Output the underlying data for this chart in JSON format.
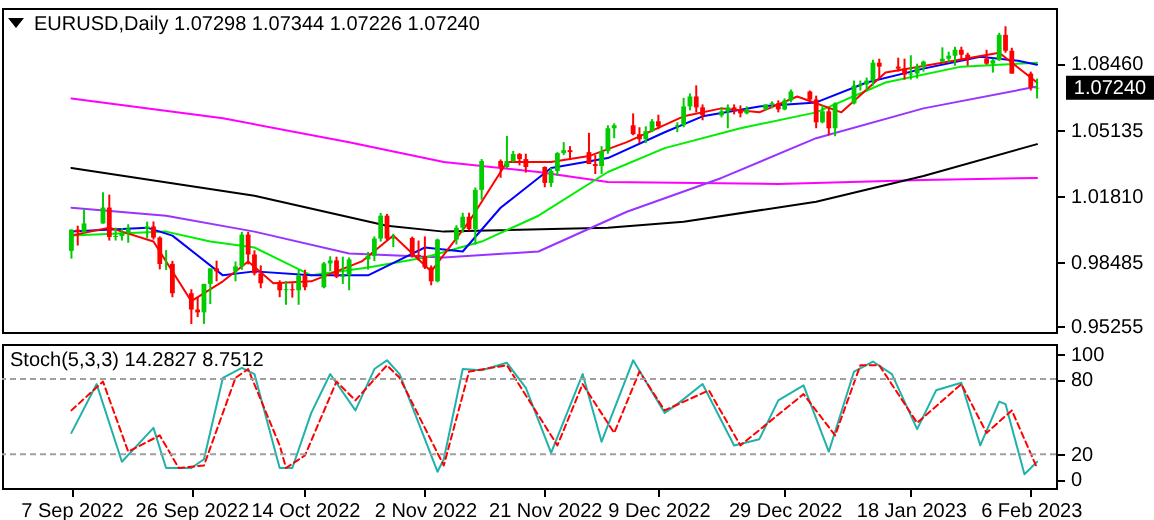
{
  "chart_data": [
    {
      "type": "candlestick",
      "title": "EURUSD,Daily 1.07298 1.07344 1.07226 1.07240",
      "x": [
        "2022-09-07",
        "2022-09-08",
        "2022-09-09",
        "2022-09-12",
        "2022-09-13",
        "2022-09-14",
        "2022-09-15",
        "2022-09-16",
        "2022-09-19",
        "2022-09-20",
        "2022-09-21",
        "2022-09-22",
        "2022-09-23",
        "2022-09-26",
        "2022-09-27",
        "2022-09-28",
        "2022-09-29",
        "2022-09-30",
        "2022-10-03",
        "2022-10-04",
        "2022-10-05",
        "2022-10-06",
        "2022-10-07",
        "2022-10-10",
        "2022-10-11",
        "2022-10-12",
        "2022-10-13",
        "2022-10-14",
        "2022-10-17",
        "2022-10-18",
        "2022-10-19",
        "2022-10-20",
        "2022-10-21",
        "2022-10-24",
        "2022-10-25",
        "2022-10-26",
        "2022-10-27",
        "2022-10-28",
        "2022-10-31",
        "2022-11-01",
        "2022-11-02",
        "2022-11-03",
        "2022-11-04",
        "2022-11-07",
        "2022-11-08",
        "2022-11-09",
        "2022-11-10",
        "2022-11-11",
        "2022-11-14",
        "2022-11-15",
        "2022-11-16",
        "2022-11-17",
        "2022-11-18",
        "2022-11-21",
        "2022-11-22",
        "2022-11-23",
        "2022-11-24",
        "2022-11-25",
        "2022-11-28",
        "2022-11-29",
        "2022-11-30",
        "2022-12-01",
        "2022-12-02",
        "2022-12-05",
        "2022-12-06",
        "2022-12-07",
        "2022-12-08",
        "2022-12-09",
        "2022-12-12",
        "2022-12-13",
        "2022-12-14",
        "2022-12-15",
        "2022-12-16",
        "2022-12-19",
        "2022-12-20",
        "2022-12-21",
        "2022-12-22",
        "2022-12-23",
        "2022-12-26",
        "2022-12-27",
        "2022-12-28",
        "2022-12-29",
        "2022-12-30",
        "2023-01-02",
        "2023-01-03",
        "2023-01-04",
        "2023-01-05",
        "2023-01-06",
        "2023-01-09",
        "2023-01-10",
        "2023-01-11",
        "2023-01-12",
        "2023-01-13",
        "2023-01-16",
        "2023-01-17",
        "2023-01-18",
        "2023-01-19",
        "2023-01-20",
        "2023-01-23",
        "2023-01-24",
        "2023-01-25",
        "2023-01-26",
        "2023-01-27",
        "2023-01-30",
        "2023-01-31",
        "2023-02-01",
        "2023-02-02",
        "2023-02-03",
        "2023-02-06",
        "2023-02-07"
      ],
      "ohlc": [
        [
          0.9903,
          1.0012,
          0.9864,
          1.001
        ],
        [
          1.001,
          1.003,
          0.993,
          0.9998
        ],
        [
          0.9998,
          1.0112,
          0.999,
          1.0041
        ],
        [
          1.0041,
          1.0198,
          1.004,
          1.0121
        ],
        [
          1.0121,
          1.0186,
          0.9955,
          0.9973
        ],
        [
          0.9973,
          1.002,
          0.9955,
          0.9978
        ],
        [
          0.9978,
          1.0018,
          0.9955,
          0.9995
        ],
        [
          0.9995,
          1.0037,
          0.9944,
          1.0015
        ],
        [
          1.0015,
          1.005,
          0.9966,
          1.0026
        ],
        [
          1.0026,
          1.0051,
          0.996,
          0.997
        ],
        [
          0.997,
          0.9976,
          0.981,
          0.9837
        ],
        [
          0.9837,
          0.9907,
          0.9807,
          0.9838
        ],
        [
          0.9838,
          0.9853,
          0.967,
          0.969
        ],
        [
          0.969,
          0.971,
          0.9535,
          0.9608
        ],
        [
          0.9608,
          0.9671,
          0.957,
          0.9594
        ],
        [
          0.9594,
          0.9737,
          0.9536,
          0.9737
        ],
        [
          0.9737,
          0.9815,
          0.9636,
          0.9815
        ],
        [
          0.9815,
          0.9854,
          0.975,
          0.98
        ],
        [
          0.98,
          0.985,
          0.975,
          0.9825
        ],
        [
          0.9825,
          0.9999,
          0.9808,
          0.9985
        ],
        [
          0.9985,
          0.9999,
          0.9835,
          0.9885
        ],
        [
          0.9885,
          0.9906,
          0.978,
          0.979
        ],
        [
          0.979,
          0.983,
          0.9715,
          0.974
        ],
        [
          0.974,
          0.9755,
          0.967,
          0.9705
        ],
        [
          0.9705,
          0.9752,
          0.9632,
          0.971
        ],
        [
          0.971,
          0.974,
          0.9668,
          0.9705
        ],
        [
          0.9705,
          0.9807,
          0.9632,
          0.978
        ],
        [
          0.978,
          0.9808,
          0.9705,
          0.972
        ],
        [
          0.972,
          0.9847,
          0.9715,
          0.984
        ],
        [
          0.984,
          0.9876,
          0.9802,
          0.9855
        ],
        [
          0.9855,
          0.9874,
          0.9766,
          0.9773
        ],
        [
          0.9773,
          0.9874,
          0.9737,
          0.978
        ],
        [
          0.978,
          0.987,
          0.9705,
          0.986
        ],
        [
          0.986,
          0.9898,
          0.9809,
          0.9878
        ],
        [
          0.9878,
          0.9976,
          0.9852,
          0.9965
        ],
        [
          0.9965,
          1.0094,
          0.995,
          1.008
        ],
        [
          1.008,
          1.0089,
          0.9953,
          0.9965
        ],
        [
          0.9965,
          0.9989,
          0.9922,
          0.9968
        ],
        [
          0.9968,
          0.9975,
          0.987,
          0.9882
        ],
        [
          0.9882,
          0.9955,
          0.9855,
          0.9877
        ],
        [
          0.9877,
          0.9976,
          0.9812,
          0.982
        ],
        [
          0.982,
          0.983,
          0.973,
          0.975
        ],
        [
          0.975,
          0.9965,
          0.9745,
          0.996
        ],
        [
          0.996,
          1.0032,
          0.9935,
          1.002
        ],
        [
          1.002,
          1.0095,
          0.9995,
          1.0075
        ],
        [
          1.0075,
          1.0095,
          1.0005,
          1.0013
        ],
        [
          1.0013,
          1.0222,
          0.9935,
          1.021
        ],
        [
          1.021,
          1.0365,
          1.016,
          1.0355
        ],
        [
          1.0355,
          1.0363,
          1.0271,
          1.0325
        ],
        [
          1.0325,
          1.0481,
          1.032,
          1.0355
        ],
        [
          1.0355,
          1.0406,
          1.035,
          1.039
        ],
        [
          1.039,
          1.0395,
          1.0333,
          1.0365
        ],
        [
          1.0365,
          1.0392,
          1.0297,
          1.0325
        ],
        [
          1.0325,
          1.0328,
          1.0223,
          1.0245
        ],
        [
          1.0245,
          1.032,
          1.0225,
          1.0305
        ],
        [
          1.0305,
          1.04,
          1.028,
          1.0395
        ],
        [
          1.0395,
          1.045,
          1.0385,
          1.041
        ],
        [
          1.041,
          1.043,
          1.036,
          1.04
        ],
        [
          1.04,
          1.0497,
          1.034,
          1.034
        ],
        [
          1.034,
          1.0385,
          1.029,
          1.033
        ],
        [
          1.033,
          1.043,
          1.029,
          1.0405
        ],
        [
          1.0405,
          1.0535,
          1.0392,
          1.052
        ],
        [
          1.052,
          1.0545,
          1.047,
          1.0535
        ],
        [
          1.0535,
          1.0595,
          1.0485,
          1.049
        ],
        [
          1.049,
          1.0525,
          1.0445,
          1.0465
        ],
        [
          1.0465,
          1.053,
          1.0445,
          1.0505
        ],
        [
          1.0505,
          1.0566,
          1.05,
          1.0555
        ],
        [
          1.0555,
          1.0588,
          1.0515,
          1.053
        ],
        [
          1.053,
          1.055,
          1.05,
          1.0535
        ],
        [
          1.0535,
          1.0673,
          1.0525,
          1.063
        ],
        [
          1.063,
          1.0695,
          1.061,
          1.068
        ],
        [
          1.068,
          1.0736,
          1.06,
          1.0625
        ],
        [
          1.0625,
          1.064,
          1.056,
          1.0585
        ],
        [
          1.0585,
          1.0626,
          1.0575,
          1.0605
        ],
        [
          1.0605,
          1.064,
          1.052,
          1.0625
        ],
        [
          1.0625,
          1.064,
          1.059,
          1.061
        ],
        [
          1.061,
          1.0635,
          1.0575,
          1.0595
        ],
        [
          1.0595,
          1.063,
          1.059,
          1.0615
        ],
        [
          1.0615,
          1.064,
          1.061,
          1.064
        ],
        [
          1.064,
          1.0655,
          1.062,
          1.0646
        ],
        [
          1.0646,
          1.066,
          1.06,
          1.0615
        ],
        [
          1.0615,
          1.067,
          1.061,
          1.066
        ],
        [
          1.066,
          1.0715,
          1.065,
          1.0705
        ],
        [
          1.0705,
          1.071,
          1.065,
          1.0665
        ],
        [
          1.0665,
          1.0684,
          1.052,
          1.055
        ],
        [
          1.055,
          1.0635,
          1.0545,
          1.0605
        ],
        [
          1.0605,
          1.0625,
          1.0485,
          1.052
        ],
        [
          1.052,
          1.065,
          1.048,
          1.0645
        ],
        [
          1.0645,
          1.076,
          1.064,
          1.0735
        ],
        [
          1.0735,
          1.076,
          1.071,
          1.0741
        ],
        [
          1.0741,
          1.0775,
          1.071,
          1.076
        ],
        [
          1.076,
          1.0865,
          1.0735,
          1.085
        ],
        [
          1.085,
          1.087,
          1.077,
          1.083
        ],
        [
          1.083,
          1.0875,
          1.0805,
          1.082
        ],
        [
          1.082,
          1.087,
          1.0765,
          1.079
        ],
        [
          1.079,
          1.0887,
          1.0765,
          1.0795
        ],
        [
          1.0795,
          1.0845,
          1.077,
          1.083
        ],
        [
          1.083,
          1.086,
          1.0805,
          1.0855
        ],
        [
          1.0855,
          1.0927,
          1.085,
          1.087
        ],
        [
          1.087,
          1.0905,
          1.085,
          1.0885
        ],
        [
          1.0885,
          1.093,
          1.0835,
          1.0915
        ],
        [
          1.0915,
          1.093,
          1.086,
          1.089
        ],
        [
          1.089,
          1.09,
          1.0835,
          1.087
        ],
        [
          1.087,
          1.0915,
          1.084,
          1.0845
        ],
        [
          1.0845,
          1.087,
          1.08,
          1.0862
        ],
        [
          1.0862,
          1.1,
          1.086,
          1.099
        ],
        [
          1.099,
          1.1033,
          1.09,
          1.091
        ],
        [
          1.091,
          1.0925,
          1.0795,
          1.0795
        ],
        [
          1.0795,
          1.0805,
          1.071,
          1.0725
        ],
        [
          1.072,
          1.077,
          1.067,
          1.0724
        ]
      ],
      "colors": [
        "#00cc00",
        "#ff0000",
        "#00cc00",
        "#00cc00",
        "#ff0000",
        "#00cc00",
        "#00cc00",
        "#00cc00",
        "#00cc00",
        "#ff0000",
        "#ff0000",
        "#00cc00",
        "#ff0000",
        "#ff0000",
        "#ff0000",
        "#00cc00",
        "#00cc00",
        "#ff0000",
        "#00cc00",
        "#00cc00",
        "#ff0000",
        "#ff0000",
        "#ff0000",
        "#ff0000",
        "#00cc00",
        "#ff0000",
        "#00cc00",
        "#ff0000",
        "#00cc00",
        "#00cc00",
        "#ff0000",
        "#00cc00",
        "#00cc00",
        "#00cc00",
        "#00cc00",
        "#00cc00",
        "#ff0000",
        "#00cc00",
        "#ff0000",
        "#ff0000",
        "#ff0000",
        "#ff0000",
        "#00cc00",
        "#00cc00",
        "#00cc00",
        "#ff0000",
        "#00cc00",
        "#00cc00",
        "#ff0000",
        "#00cc00",
        "#00cc00",
        "#ff0000",
        "#ff0000",
        "#ff0000",
        "#00cc00",
        "#00cc00",
        "#00cc00",
        "#ff0000",
        "#ff0000",
        "#ff0000",
        "#00cc00",
        "#00cc00",
        "#00cc00",
        "#ff0000",
        "#ff0000",
        "#00cc00",
        "#00cc00",
        "#ff0000",
        "#00cc00",
        "#00cc00",
        "#00cc00",
        "#ff0000",
        "#ff0000",
        "#00cc00",
        "#00cc00",
        "#ff0000",
        "#ff0000",
        "#00cc00",
        "#00cc00",
        "#00cc00",
        "#ff0000",
        "#00cc00",
        "#00cc00",
        "#ff0000",
        "#ff0000",
        "#00cc00",
        "#ff0000",
        "#00cc00",
        "#00cc00",
        "#00cc00",
        "#00cc00",
        "#00cc00",
        "#ff0000",
        "#ff0000",
        "#ff0000",
        "#00cc00",
        "#00cc00",
        "#00cc00",
        "#00cc00",
        "#00cc00",
        "#00cc00",
        "#ff0000",
        "#ff0000",
        "#ff0000",
        "#00cc00",
        "#00cc00",
        "#ff0000",
        "#ff0000",
        "#ff0000",
        "#00cc00"
      ],
      "series": [
        {
          "type": "line",
          "color": "#ff00ff",
          "x": [
            "2022-09-07",
            "2022-10-01",
            "2022-10-21",
            "2022-11-05",
            "2022-11-20",
            "2022-12-01",
            "2022-12-28",
            "2023-01-20",
            "2023-02-07"
          ],
          "values": [
            1.067,
            1.057,
            1.045,
            1.035,
            1.03,
            1.025,
            1.024,
            1.026,
            1.027
          ]
        },
        {
          "type": "line",
          "color": "#000000",
          "x": [
            "2022-09-07",
            "2022-10-06",
            "2022-10-27",
            "2022-11-05",
            "2022-12-01",
            "2022-12-13",
            "2023-01-03",
            "2023-01-20",
            "2023-02-07"
          ],
          "values": [
            1.032,
            1.018,
            1.003,
            1.0,
            1.002,
            1.005,
            1.015,
            1.028,
            1.044
          ]
        },
        {
          "type": "line",
          "color": "#9933ff",
          "x": [
            "2022-09-07",
            "2022-09-22",
            "2022-10-06",
            "2022-10-21",
            "2022-11-05",
            "2022-11-20",
            "2022-12-04",
            "2022-12-19",
            "2023-01-03",
            "2023-01-20",
            "2023-02-07"
          ],
          "values": [
            1.012,
            1.008,
            1.0,
            0.989,
            0.987,
            0.99,
            1.01,
            1.027,
            1.047,
            1.062,
            1.073
          ]
        },
        {
          "type": "line",
          "color": "#00ee00",
          "x": [
            "2022-09-07",
            "2022-09-22",
            "2022-09-29",
            "2022-10-06",
            "2022-10-15",
            "2022-10-24",
            "2022-11-02",
            "2022-11-11",
            "2022-11-20",
            "2022-12-01",
            "2022-12-10",
            "2022-12-22",
            "2023-01-03",
            "2023-01-14",
            "2023-01-26",
            "2023-02-07"
          ],
          "values": [
            0.998,
            1.0,
            0.995,
            0.992,
            0.978,
            0.982,
            0.987,
            0.995,
            1.008,
            1.03,
            1.042,
            1.052,
            1.06,
            1.075,
            1.083,
            1.085
          ]
        },
        {
          "type": "line",
          "color": "#0000ff",
          "x": [
            "2022-09-07",
            "2022-09-19",
            "2022-09-23",
            "2022-10-01",
            "2022-10-06",
            "2022-10-15",
            "2022-10-24",
            "2022-11-02",
            "2022-11-08",
            "2022-11-14",
            "2022-11-22",
            "2022-12-01",
            "2022-12-10",
            "2022-12-16",
            "2022-12-25",
            "2023-01-03",
            "2023-01-11",
            "2023-01-20",
            "2023-01-29",
            "2023-02-04",
            "2023-02-07"
          ],
          "values": [
            1.0,
            1.002,
            0.998,
            0.978,
            0.98,
            0.978,
            0.978,
            0.992,
            0.99,
            1.012,
            1.032,
            1.037,
            1.05,
            1.058,
            1.063,
            1.065,
            1.075,
            1.082,
            1.088,
            1.086,
            1.084
          ]
        },
        {
          "type": "line",
          "color": "#ff0000",
          "x": [
            "2022-09-07",
            "2022-09-13",
            "2022-09-20",
            "2022-09-26",
            "2022-10-01",
            "2022-10-05",
            "2022-10-09",
            "2022-10-15",
            "2022-10-23",
            "2022-10-28",
            "2022-11-03",
            "2022-11-09",
            "2022-11-15",
            "2022-11-22",
            "2022-11-28",
            "2022-12-04",
            "2022-12-13",
            "2022-12-19",
            "2022-12-25",
            "2022-12-31",
            "2023-01-07",
            "2023-01-14",
            "2023-01-23",
            "2023-02-01",
            "2023-02-07"
          ],
          "values": [
            0.998,
            1.002,
            0.995,
            0.965,
            0.975,
            0.985,
            0.974,
            0.975,
            0.985,
            0.998,
            0.98,
            1.005,
            1.035,
            1.035,
            1.038,
            1.045,
            1.058,
            1.062,
            1.06,
            1.068,
            1.06,
            1.08,
            1.085,
            1.09,
            1.075
          ]
        }
      ],
      "xlim": [
        "2022-08-27",
        "2023-02-10"
      ],
      "ylim": [
        0.9495,
        1.1125
      ],
      "yticks": [
        {
          "value": 0.95255,
          "label": "0.95255"
        },
        {
          "value": 0.98485,
          "label": "0.98485"
        },
        {
          "value": 1.0181,
          "label": "1.01810"
        },
        {
          "value": 1.05135,
          "label": "1.05135"
        },
        {
          "value": 1.0846,
          "label": "1.08460"
        }
      ],
      "tick_labels": "y",
      "annotations": [
        "1.07240"
      ]
    },
    {
      "type": "line",
      "title": "Stoch(5,3,3) 14.2827 8.7512",
      "series": [
        {
          "color": "#20b2aa",
          "x": [
            "2022-09-07",
            "2022-09-11",
            "2022-09-15",
            "2022-09-20",
            "2022-09-22",
            "2022-09-26",
            "2022-09-28",
            "2022-10-01",
            "2022-10-04",
            "2022-10-06",
            "2022-10-10",
            "2022-10-12",
            "2022-10-15",
            "2022-10-18",
            "2022-10-22",
            "2022-10-25",
            "2022-10-27",
            "2022-10-29",
            "2022-11-04",
            "2022-11-05",
            "2022-11-08",
            "2022-11-11",
            "2022-11-15",
            "2022-11-18",
            "2022-11-22",
            "2022-11-27",
            "2022-11-30",
            "2022-12-05",
            "2022-12-10",
            "2022-12-12",
            "2022-12-16",
            "2022-12-21",
            "2022-12-25",
            "2022-12-28",
            "2023-01-01",
            "2023-01-05",
            "2023-01-09",
            "2023-01-12",
            "2023-01-15",
            "2023-01-19",
            "2023-01-22",
            "2023-01-26",
            "2023-01-29",
            "2023-02-01",
            "2023-02-02",
            "2023-02-05",
            "2023-02-07"
          ],
          "values": [
            37,
            76,
            14,
            41,
            9,
            9,
            16,
            81,
            89,
            84,
            9,
            9,
            53,
            84,
            55,
            88,
            95,
            84,
            6,
            16,
            88,
            87,
            93,
            73,
            21,
            84,
            30,
            95,
            53,
            60,
            76,
            27,
            32,
            63,
            75,
            22,
            86,
            94,
            84,
            40,
            71,
            77,
            27,
            62,
            60,
            4,
            14
          ]
        },
        {
          "color": "#ff0000",
          "line_style": "dashed",
          "x": [
            "2022-09-07",
            "2022-09-12",
            "2022-09-16",
            "2022-09-21",
            "2022-09-24",
            "2022-09-28",
            "2022-10-03",
            "2022-10-05",
            "2022-10-10",
            "2022-10-11",
            "2022-10-14",
            "2022-10-19",
            "2022-10-22",
            "2022-10-27",
            "2022-10-29",
            "2022-11-05",
            "2022-11-09",
            "2022-11-15",
            "2022-11-23",
            "2022-11-27",
            "2022-12-02",
            "2022-12-06",
            "2022-12-10",
            "2022-12-17",
            "2022-12-22",
            "2023-01-01",
            "2023-01-06",
            "2023-01-10",
            "2023-01-13",
            "2023-01-19",
            "2023-01-26",
            "2023-01-30",
            "2023-02-03",
            "2023-02-07"
          ],
          "values": [
            55,
            78,
            22,
            35,
            9,
            11,
            81,
            88,
            27,
            9,
            19,
            78,
            63,
            91,
            81,
            11,
            86,
            91,
            27,
            76,
            37,
            86,
            55,
            71,
            27,
            68,
            35,
            91,
            91,
            45,
            76,
            37,
            55,
            9
          ]
        }
      ],
      "xlim": [
        "2022-08-27",
        "2023-02-10"
      ],
      "xticks": [
        {
          "value": "2022-09-07",
          "label": "7 Sep 2022"
        },
        {
          "value": "2022-09-26",
          "label": "26 Sep 2022"
        },
        {
          "value": "2022-10-14",
          "label": "14 Oct 2022"
        },
        {
          "value": "2022-11-02",
          "label": "2 Nov 2022"
        },
        {
          "value": "2022-11-21",
          "label": "21 Nov 2022"
        },
        {
          "value": "2022-12-09",
          "label": "9 Dec 2022"
        },
        {
          "value": "2022-12-29",
          "label": "29 Dec 2022"
        },
        {
          "value": "2023-01-18",
          "label": "18 Jan 2023"
        },
        {
          "value": "2023-02-06",
          "label": "6 Feb 2023"
        }
      ],
      "ylim": [
        -7,
        108
      ],
      "yticks": [
        0,
        20,
        80,
        100
      ],
      "ref_lines": [
        {
          "axis": "y",
          "value": 20,
          "color": "#a0a0a0",
          "line_style": "dashed"
        },
        {
          "axis": "y",
          "value": 80,
          "color": "#a0a0a0",
          "line_style": "dashed"
        }
      ]
    }
  ]
}
